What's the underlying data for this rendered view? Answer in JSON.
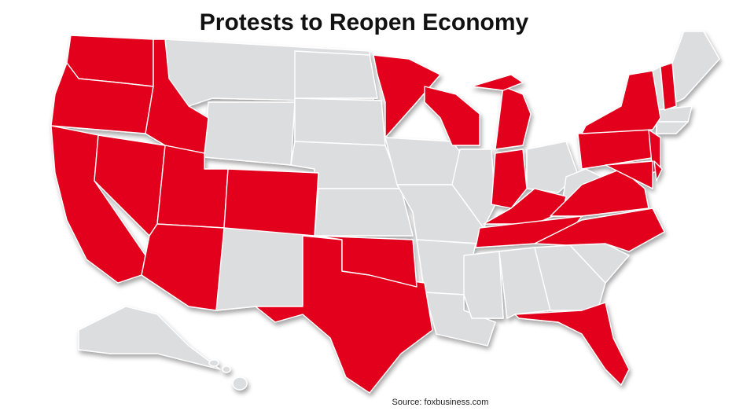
{
  "header": {
    "title": "Protests to Reopen Economy"
  },
  "footer": {
    "source": "Source: foxbusiness.com"
  }
}
